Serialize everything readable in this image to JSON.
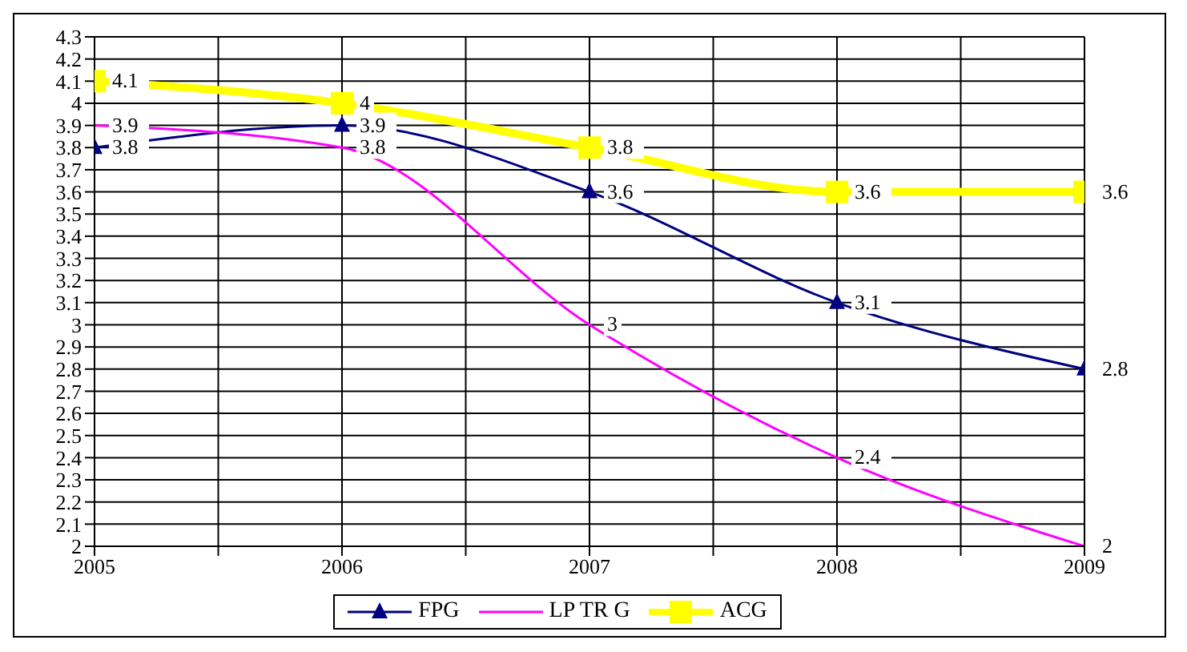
{
  "chart_data": {
    "type": "line",
    "x": [
      2005,
      2006,
      2007,
      2008,
      2009
    ],
    "series": [
      {
        "name": "FPG",
        "color": "#000080",
        "values": [
          3.8,
          3.9,
          3.6,
          3.1,
          2.8
        ],
        "marker": "triangle"
      },
      {
        "name": "LP TR G",
        "color": "#ff00ff",
        "values": [
          3.9,
          3.8,
          3,
          2.4,
          2
        ],
        "marker": "none"
      },
      {
        "name": "ACG",
        "color": "#ffff00",
        "values": [
          4.1,
          4,
          3.8,
          3.6,
          3.6
        ],
        "marker": "square"
      }
    ],
    "xlim": [
      2005,
      2009
    ],
    "xticks": [
      2005,
      {
        "value": 2005.5,
        "label": null
      },
      2006,
      {
        "value": 2006.5,
        "label": null
      },
      2007,
      {
        "value": 2007.5,
        "label": null
      },
      2008,
      {
        "value": 2008.5,
        "label": null
      },
      2009
    ],
    "ylim": [
      2,
      4.3
    ],
    "yticks": [
      2,
      2.1,
      2.2,
      2.3,
      2.4,
      2.5,
      2.6,
      2.7,
      2.8,
      2.9,
      3,
      3.1,
      3.2,
      3.3,
      3.4,
      3.5,
      3.6,
      3.7,
      3.8,
      3.9,
      4,
      4.1,
      4.2,
      4.3
    ],
    "grid": true,
    "legend": "bottom",
    "data_labels": true
  }
}
